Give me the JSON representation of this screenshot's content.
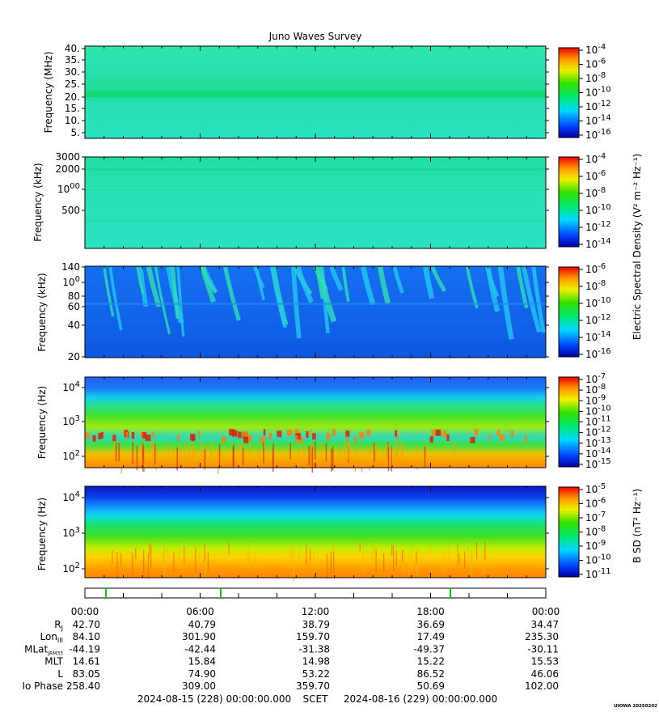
{
  "title": "Juno Waves Survey",
  "credit": "UIOWA 20250202",
  "chart_data": [
    {
      "type": "heatmap",
      "panel": "HF high",
      "ylabel": "Frequency (MHz)",
      "y_ticks": [
        "40.",
        "35.",
        "30.",
        "25.",
        "20.",
        "15.",
        "10.",
        "5."
      ],
      "ylim": [
        3.5,
        41
      ],
      "colorbar_ticks": [
        "10-4",
        "10-6",
        "10-8",
        "10-10",
        "10-12",
        "10-14",
        "10-16"
      ]
    },
    {
      "type": "heatmap",
      "panel": "HF low",
      "ylabel": "Frequency (kHz)",
      "y_ticks": [
        "3000",
        "2000",
        "1000",
        "500"
      ],
      "ylim": [
        140,
        3000
      ],
      "y_scale": "log",
      "colorbar_ticks": [
        "10-4",
        "10-6",
        "10-8",
        "10-10",
        "10-12",
        "10-14"
      ]
    },
    {
      "type": "heatmap",
      "panel": "LF",
      "ylabel": "Frequency (kHz)",
      "y_ticks": [
        "140",
        "100",
        "80",
        "60",
        "40",
        "20"
      ],
      "ylim": [
        20,
        140
      ],
      "y_scale": "log",
      "colorbar_ticks": [
        "10-6",
        "10-8",
        "10-10",
        "10-12",
        "10-14",
        "10-16"
      ]
    },
    {
      "type": "heatmap",
      "panel": "E low",
      "ylabel": "Frequency (Hz)",
      "y_ticks": [
        "10^4",
        "10^3",
        "10^2"
      ],
      "ylim": [
        50,
        20000
      ],
      "y_scale": "log",
      "colorbar_ticks": [
        "10-7",
        "10-8",
        "10-9",
        "10-10",
        "10-11",
        "10-12",
        "10-13",
        "10-14",
        "10-15"
      ]
    },
    {
      "type": "heatmap",
      "panel": "B",
      "ylabel": "Frequency (Hz)",
      "y_ticks": [
        "10^4",
        "10^3",
        "10^2"
      ],
      "ylim": [
        50,
        20000
      ],
      "y_scale": "log",
      "colorbar_ticks": [
        "10-5",
        "10-6",
        "10-7",
        "10-8",
        "10-9",
        "10-10",
        "10-11"
      ]
    }
  ],
  "colorbar_labels": {
    "electric": "Electric Spectral Density (V² m⁻² Hz⁻¹)",
    "magnetic": "B SD (nT² Hz⁻¹)"
  },
  "time_axis": {
    "labels": [
      "00:00",
      "06:00",
      "12:00",
      "18:00",
      "00:00"
    ],
    "start": "2024-08-15 (228) 00:00:00.000",
    "mid": "SCET",
    "end": "2024-08-16 (229) 00:00:00.000"
  },
  "ephemeris": [
    {
      "label": "R",
      "sub": "J",
      "values": [
        "42.70",
        "40.79",
        "38.79",
        "36.69",
        "34.47"
      ]
    },
    {
      "label": "Lon",
      "sub": "III",
      "values": [
        "84.10",
        "301.90",
        "159.70",
        "17.49",
        "235.30"
      ]
    },
    {
      "label": "MLat",
      "sub": "JRM33",
      "values": [
        "-44.19",
        "-42.44",
        "-31.38",
        "-49.37",
        "-30.11"
      ]
    },
    {
      "label": "MLT",
      "sub": "",
      "values": [
        "14.61",
        "15.84",
        "14.98",
        "15.22",
        "15.53"
      ]
    },
    {
      "label": "L",
      "sub": "",
      "values": [
        "83.05",
        "74.90",
        "53.22",
        "86.52",
        "46.06"
      ]
    },
    {
      "label": "Io Phase",
      "sub": "",
      "values": [
        "258.40",
        "309.00",
        "359.70",
        "50.69",
        "102.00"
      ]
    }
  ]
}
